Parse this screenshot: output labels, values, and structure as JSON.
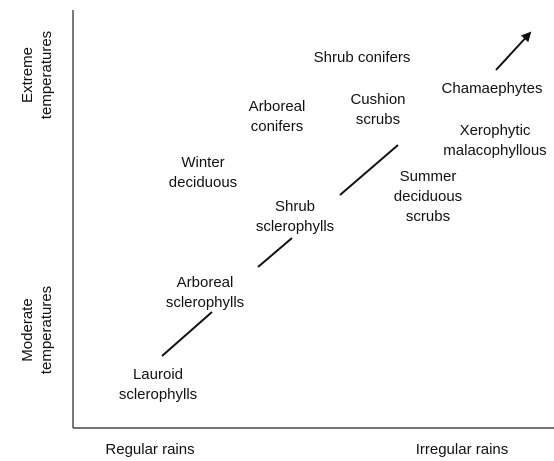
{
  "axes": {
    "y_top": [
      "Extreme",
      "temperatures"
    ],
    "y_bottom": [
      "Moderate",
      "temperatures"
    ],
    "x_left": "Regular rains",
    "x_right": "Irregular rains"
  },
  "nodes": [
    {
      "lines": [
        "Lauroid",
        "sclerophylls"
      ]
    },
    {
      "lines": [
        "Arboreal",
        "sclerophylls"
      ]
    },
    {
      "lines": [
        "Shrub",
        "sclerophylls"
      ]
    },
    {
      "lines": [
        "Winter",
        "deciduous"
      ]
    },
    {
      "lines": [
        "Arboreal",
        "conifers"
      ]
    },
    {
      "lines": [
        "Shrub conifers"
      ]
    },
    {
      "lines": [
        "Cushion",
        "scrubs"
      ]
    },
    {
      "lines": [
        "Chamaephytes"
      ]
    },
    {
      "lines": [
        "Xerophytic",
        "malacophyllous"
      ]
    },
    {
      "lines": [
        "Summer",
        "deciduous",
        "scrubs"
      ]
    }
  ]
}
